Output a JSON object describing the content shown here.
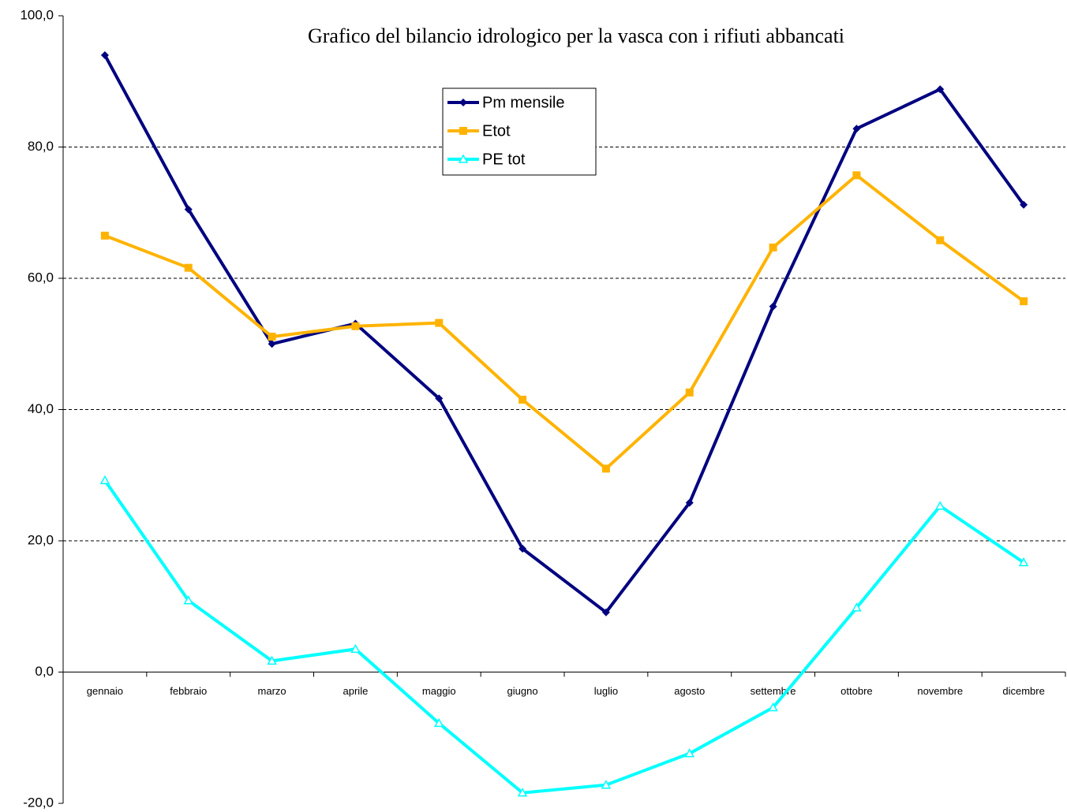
{
  "chart_data": {
    "type": "line",
    "title": "Grafico del bilancio idrologico per la vasca con i rifiuti abbancati",
    "categories": [
      "gennaio",
      "febbraio",
      "marzo",
      "aprile",
      "maggio",
      "giugno",
      "luglio",
      "agosto",
      "settembre",
      "ottobre",
      "novembre",
      "dicembre"
    ],
    "series": [
      {
        "name": "Pm mensile",
        "color": "#000080",
        "marker": "diamond",
        "values": [
          94.0,
          70.5,
          50.0,
          53.1,
          41.7,
          18.8,
          9.1,
          25.8,
          55.7,
          82.8,
          88.8,
          71.2
        ]
      },
      {
        "name": "Etot",
        "color": "#ffb300",
        "marker": "square",
        "values": [
          66.5,
          61.6,
          51.1,
          52.7,
          53.2,
          41.5,
          31.0,
          42.6,
          64.7,
          75.7,
          65.8,
          56.5
        ]
      },
      {
        "name": "PE tot",
        "color": "#00ffff",
        "marker": "triangle",
        "values": [
          29.2,
          10.9,
          1.7,
          3.5,
          -7.8,
          -18.4,
          -17.2,
          -12.4,
          -5.4,
          9.8,
          25.3,
          16.7
        ]
      }
    ],
    "ylim": [
      -20,
      100
    ],
    "yticks": [
      {
        "value": -20,
        "label": "-20,0"
      },
      {
        "value": 0,
        "label": "0,0"
      },
      {
        "value": 20,
        "label": "20,0"
      },
      {
        "value": 40,
        "label": "40,0"
      },
      {
        "value": 60,
        "label": "60,0"
      },
      {
        "value": 80,
        "label": "80,0"
      },
      {
        "value": 100,
        "label": "100,0"
      }
    ],
    "grid": true,
    "legend": "top"
  }
}
